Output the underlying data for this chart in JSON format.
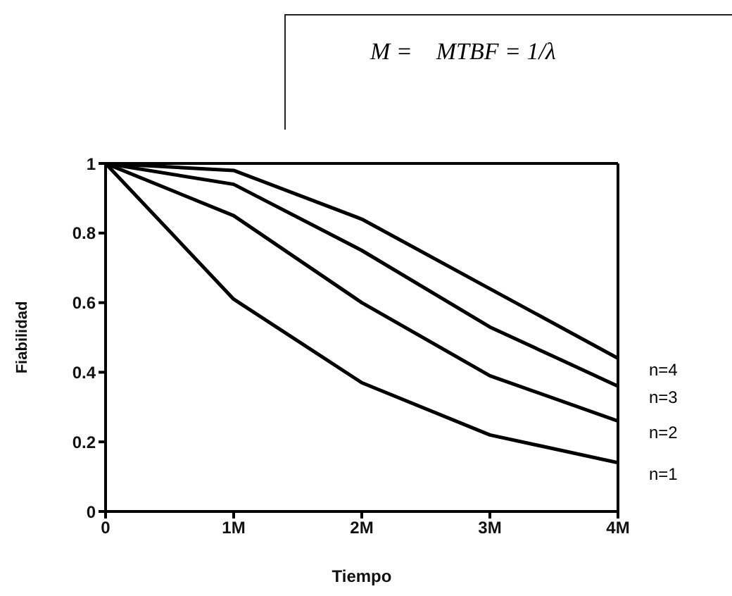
{
  "chart_data": {
    "type": "line",
    "annotations": [
      "M =    MTBF = 1/λ"
    ],
    "xlabel": "Tiempo",
    "ylabel": "Fiabilidad",
    "x": [
      0,
      1,
      2,
      3,
      4
    ],
    "series": [
      {
        "name": "n=1",
        "color": "#000000",
        "values": [
          1,
          0.61,
          0.37,
          0.22,
          0.14
        ]
      },
      {
        "name": "n=2",
        "color": "#000000",
        "values": [
          1,
          0.85,
          0.6,
          0.39,
          0.26
        ]
      },
      {
        "name": "n=3",
        "color": "#000000",
        "values": [
          1,
          0.94,
          0.75,
          0.53,
          0.36
        ]
      },
      {
        "name": "n=4",
        "color": "#000000",
        "values": [
          1,
          0.98,
          0.84,
          0.64,
          0.44
        ]
      }
    ],
    "xlim": [
      0,
      4
    ],
    "xticks": [
      0,
      {
        "value": 1,
        "label": "1M"
      },
      {
        "value": 2,
        "label": "2M"
      },
      {
        "value": 3,
        "label": "3M"
      },
      {
        "value": 4,
        "label": "4M"
      }
    ],
    "ylim": [
      0,
      1
    ],
    "yticks": [
      0,
      0.2,
      0.4,
      0.6,
      0.8,
      1
    ],
    "grid": false,
    "legend": false,
    "marker": "none",
    "line_style": "solid"
  }
}
